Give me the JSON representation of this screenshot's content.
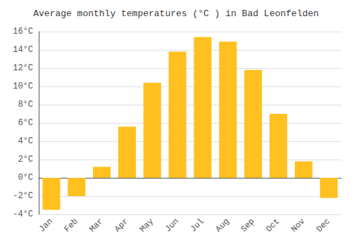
{
  "chart_data": {
    "type": "bar",
    "title": "Average monthly temperatures (°C ) in Bad Leonfelden",
    "categories": [
      "Jan",
      "Feb",
      "Mar",
      "Apr",
      "May",
      "Jun",
      "Jul",
      "Aug",
      "Sep",
      "Oct",
      "Nov",
      "Dec"
    ],
    "values": [
      -3.5,
      -2.0,
      1.2,
      5.6,
      10.4,
      13.8,
      15.4,
      14.9,
      11.8,
      7.0,
      1.8,
      -2.2
    ],
    "color": "#FFC020",
    "ylim": [
      -4,
      16
    ],
    "yticks": [
      {
        "value": -4,
        "label": "-4°C"
      },
      {
        "value": -2,
        "label": "-2°C"
      },
      {
        "value": 0,
        "label": "0°C"
      },
      {
        "value": 2,
        "label": "2°C"
      },
      {
        "value": 4,
        "label": "4°C"
      },
      {
        "value": 6,
        "label": "6°C"
      },
      {
        "value": 8,
        "label": "8°C"
      },
      {
        "value": 10,
        "label": "10°C"
      },
      {
        "value": 12,
        "label": "12°C"
      },
      {
        "value": 14,
        "label": "14°C"
      },
      {
        "value": 16,
        "label": "16°C"
      }
    ],
    "grid": true
  }
}
